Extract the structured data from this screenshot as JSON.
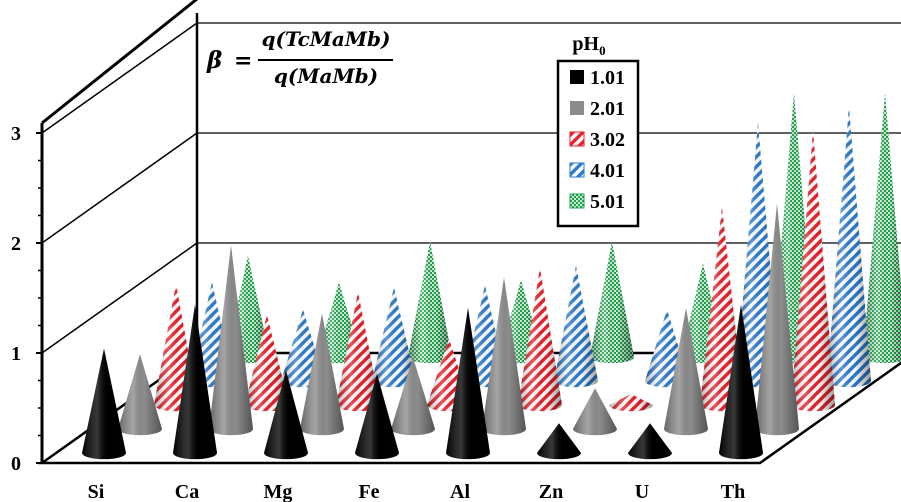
{
  "chart_data": {
    "type": "bar",
    "style": "3d-cone",
    "categories": [
      "Si",
      "Ca",
      "Mg",
      "Fe",
      "Al",
      "Zn",
      "U",
      "Th"
    ],
    "legend_title": "pH",
    "legend_title_sub": "0",
    "series": [
      {
        "name": "1.01",
        "color": "#000000",
        "pattern": "solid",
        "values": [
          0.95,
          1.35,
          0.75,
          0.72,
          1.32,
          0.27,
          0.27,
          1.35
        ]
      },
      {
        "name": "2.01",
        "color": "#8c8c8c",
        "pattern": "solid",
        "values": [
          0.68,
          1.67,
          1.05,
          0.65,
          1.38,
          0.37,
          1.1,
          2.05
        ]
      },
      {
        "name": "3.02",
        "color": "#e8202a",
        "pattern": "diagonal-stripes",
        "values": [
          1.1,
          0.82,
          1.03,
          0.6,
          1.25,
          0.1,
          1.8,
          2.5
        ]
      },
      {
        "name": "4.01",
        "color": "#2a7bcc",
        "pattern": "diagonal-stripes",
        "values": [
          0.9,
          0.65,
          0.85,
          0.87,
          1.05,
          0.65,
          2.35,
          2.5
        ]
      },
      {
        "name": "5.01",
        "color": "#1fa04a",
        "pattern": "checker",
        "values": [
          0.92,
          0.68,
          1.05,
          0.7,
          1.05,
          0.85,
          2.4,
          2.4
        ]
      }
    ],
    "annotation": {
      "lhs": "β",
      "eq": "=",
      "numerator": "q(TcMaMb)",
      "denominator": "q(MaMb)"
    },
    "ylim": [
      0,
      3
    ],
    "yticks": [
      "0",
      "1",
      "2",
      "3"
    ],
    "grid": true,
    "legend_position": "top-right"
  }
}
